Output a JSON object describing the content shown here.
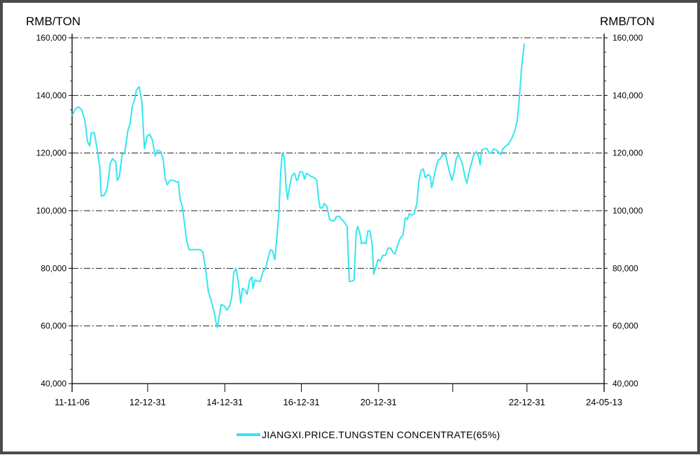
{
  "chart_data": {
    "type": "line",
    "y_unit_left": "RMB/TON",
    "y_unit_right": "RMB/TON",
    "ylim": [
      40000,
      160000
    ],
    "y_ticks": [
      40000,
      60000,
      80000,
      100000,
      120000,
      140000,
      160000
    ],
    "y_tick_labels": [
      "40,000",
      "60,000",
      "80,000",
      "100,000",
      "120,000",
      "140,000",
      "160,000"
    ],
    "x_ticks": [
      {
        "label": "11-11-06",
        "t": 0
      },
      {
        "label": "12-12-31",
        "t": 0.142
      },
      {
        "label": "14-12-31",
        "t": 0.287
      },
      {
        "label": "16-12-31",
        "t": 0.431
      },
      {
        "label": "20-12-31",
        "t": 0.576
      },
      {
        "label": "22-12-31",
        "t": 0.855
      },
      {
        "label": "24-05-13",
        "t": 1
      }
    ],
    "grid": "horizontal dash-dot",
    "legend_position": "bottom-center",
    "series": [
      {
        "name": "JIANGXI.PRICE.TUNGSTEN CONCENTRATE(65%)",
        "color": "#33e6f0",
        "points": [
          [
            0.0,
            133000
          ],
          [
            0.007,
            135500
          ],
          [
            0.012,
            136000
          ],
          [
            0.018,
            135000
          ],
          [
            0.024,
            131500
          ],
          [
            0.029,
            124000
          ],
          [
            0.033,
            122500
          ],
          [
            0.036,
            127000
          ],
          [
            0.042,
            127000
          ],
          [
            0.047,
            121500
          ],
          [
            0.052,
            115000
          ],
          [
            0.055,
            105000
          ],
          [
            0.061,
            105500
          ],
          [
            0.066,
            108000
          ],
          [
            0.072,
            116500
          ],
          [
            0.076,
            118000
          ],
          [
            0.082,
            117000
          ],
          [
            0.085,
            110500
          ],
          [
            0.089,
            112000
          ],
          [
            0.094,
            119500
          ],
          [
            0.099,
            120000
          ],
          [
            0.105,
            128000
          ],
          [
            0.109,
            130000
          ],
          [
            0.113,
            136000
          ],
          [
            0.118,
            139000
          ],
          [
            0.121,
            142000
          ],
          [
            0.126,
            143000
          ],
          [
            0.131,
            138000
          ],
          [
            0.136,
            121500
          ],
          [
            0.141,
            126000
          ],
          [
            0.146,
            126500
          ],
          [
            0.151,
            124500
          ],
          [
            0.156,
            119000
          ],
          [
            0.161,
            121000
          ],
          [
            0.167,
            120500
          ],
          [
            0.171,
            118000
          ],
          [
            0.175,
            111000
          ],
          [
            0.179,
            109000
          ],
          [
            0.184,
            110500
          ],
          [
            0.191,
            110500
          ],
          [
            0.196,
            110000
          ],
          [
            0.2,
            110000
          ],
          [
            0.203,
            104000
          ],
          [
            0.207,
            101500
          ],
          [
            0.211,
            96000
          ],
          [
            0.215,
            90000
          ],
          [
            0.22,
            86500
          ],
          [
            0.228,
            86500
          ],
          [
            0.236,
            86500
          ],
          [
            0.241,
            86500
          ],
          [
            0.246,
            85500
          ],
          [
            0.251,
            79500
          ],
          [
            0.256,
            72000
          ],
          [
            0.262,
            68500
          ],
          [
            0.268,
            64000
          ],
          [
            0.272,
            59500
          ],
          [
            0.275,
            61500
          ],
          [
            0.28,
            67500
          ],
          [
            0.286,
            67000
          ],
          [
            0.291,
            65500
          ],
          [
            0.296,
            67000
          ],
          [
            0.3,
            70000
          ],
          [
            0.304,
            78500
          ],
          [
            0.308,
            80000
          ],
          [
            0.312,
            76000
          ],
          [
            0.317,
            68000
          ],
          [
            0.32,
            73000
          ],
          [
            0.325,
            72500
          ],
          [
            0.329,
            71000
          ],
          [
            0.334,
            76000
          ],
          [
            0.338,
            77000
          ],
          [
            0.34,
            73000
          ],
          [
            0.344,
            76000
          ],
          [
            0.349,
            75500
          ],
          [
            0.354,
            75500
          ],
          [
            0.359,
            79000
          ],
          [
            0.364,
            80000
          ],
          [
            0.369,
            84000
          ],
          [
            0.373,
            86500
          ],
          [
            0.377,
            86000
          ],
          [
            0.381,
            83000
          ],
          [
            0.385,
            91000
          ],
          [
            0.389,
            100000
          ],
          [
            0.392,
            113000
          ],
          [
            0.395,
            120000
          ],
          [
            0.399,
            118500
          ],
          [
            0.402,
            109000
          ],
          [
            0.405,
            104000
          ],
          [
            0.409,
            108500
          ],
          [
            0.413,
            112000
          ],
          [
            0.418,
            113000
          ],
          [
            0.422,
            110500
          ],
          [
            0.425,
            111000
          ],
          [
            0.428,
            113500
          ],
          [
            0.433,
            113500
          ],
          [
            0.437,
            111000
          ],
          [
            0.441,
            113000
          ],
          [
            0.448,
            112000
          ],
          [
            0.455,
            111500
          ],
          [
            0.46,
            110500
          ],
          [
            0.463,
            104500
          ],
          [
            0.466,
            101000
          ],
          [
            0.47,
            101000
          ],
          [
            0.474,
            102500
          ],
          [
            0.479,
            101500
          ],
          [
            0.484,
            97000
          ],
          [
            0.488,
            96500
          ],
          [
            0.493,
            96500
          ],
          [
            0.497,
            98000
          ],
          [
            0.502,
            98000
          ],
          [
            0.507,
            97000
          ],
          [
            0.512,
            96000
          ],
          [
            0.517,
            94500
          ],
          [
            0.521,
            75500
          ],
          [
            0.526,
            75500
          ],
          [
            0.53,
            76000
          ],
          [
            0.534,
            92500
          ],
          [
            0.537,
            94500
          ],
          [
            0.541,
            92000
          ],
          [
            0.544,
            88500
          ],
          [
            0.548,
            89000
          ],
          [
            0.552,
            88500
          ],
          [
            0.556,
            93000
          ],
          [
            0.56,
            93000
          ],
          [
            0.564,
            88500
          ],
          [
            0.567,
            78000
          ],
          [
            0.571,
            80500
          ],
          [
            0.575,
            83000
          ],
          [
            0.579,
            82500
          ],
          [
            0.584,
            84500
          ],
          [
            0.589,
            84500
          ],
          [
            0.594,
            87000
          ],
          [
            0.599,
            87000
          ],
          [
            0.603,
            85500
          ],
          [
            0.607,
            85000
          ],
          [
            0.612,
            88000
          ],
          [
            0.617,
            90500
          ],
          [
            0.622,
            91500
          ],
          [
            0.626,
            97500
          ],
          [
            0.63,
            97000
          ],
          [
            0.634,
            99000
          ],
          [
            0.638,
            98500
          ],
          [
            0.643,
            99000
          ],
          [
            0.648,
            102500
          ],
          [
            0.652,
            110500
          ],
          [
            0.656,
            114000
          ],
          [
            0.66,
            114500
          ],
          [
            0.664,
            111500
          ],
          [
            0.669,
            112500
          ],
          [
            0.673,
            112000
          ],
          [
            0.676,
            108000
          ],
          [
            0.68,
            111500
          ],
          [
            0.684,
            115000
          ],
          [
            0.688,
            117500
          ],
          [
            0.692,
            118000
          ],
          [
            0.697,
            119500
          ],
          [
            0.702,
            119500
          ],
          [
            0.706,
            116000
          ],
          [
            0.71,
            113000
          ],
          [
            0.714,
            110500
          ],
          [
            0.718,
            113500
          ],
          [
            0.722,
            118000
          ],
          [
            0.726,
            119500
          ],
          [
            0.73,
            118000
          ],
          [
            0.734,
            116000
          ],
          [
            0.738,
            112000
          ],
          [
            0.742,
            109500
          ],
          [
            0.746,
            113500
          ],
          [
            0.75,
            116000
          ],
          [
            0.755,
            119500
          ],
          [
            0.76,
            120500
          ],
          [
            0.764,
            119000
          ],
          [
            0.767,
            116000
          ],
          [
            0.77,
            121000
          ],
          [
            0.775,
            121500
          ],
          [
            0.78,
            121500
          ],
          [
            0.784,
            120000
          ],
          [
            0.788,
            120000
          ],
          [
            0.792,
            121500
          ],
          [
            0.797,
            121000
          ],
          [
            0.801,
            120500
          ],
          [
            0.806,
            119500
          ],
          [
            0.81,
            121500
          ],
          [
            0.815,
            122500
          ],
          [
            0.82,
            123000
          ],
          [
            0.826,
            125000
          ],
          [
            0.832,
            127500
          ],
          [
            0.837,
            131500
          ],
          [
            0.841,
            140000
          ],
          [
            0.845,
            150000
          ],
          [
            0.85,
            158000
          ]
        ]
      }
    ]
  }
}
